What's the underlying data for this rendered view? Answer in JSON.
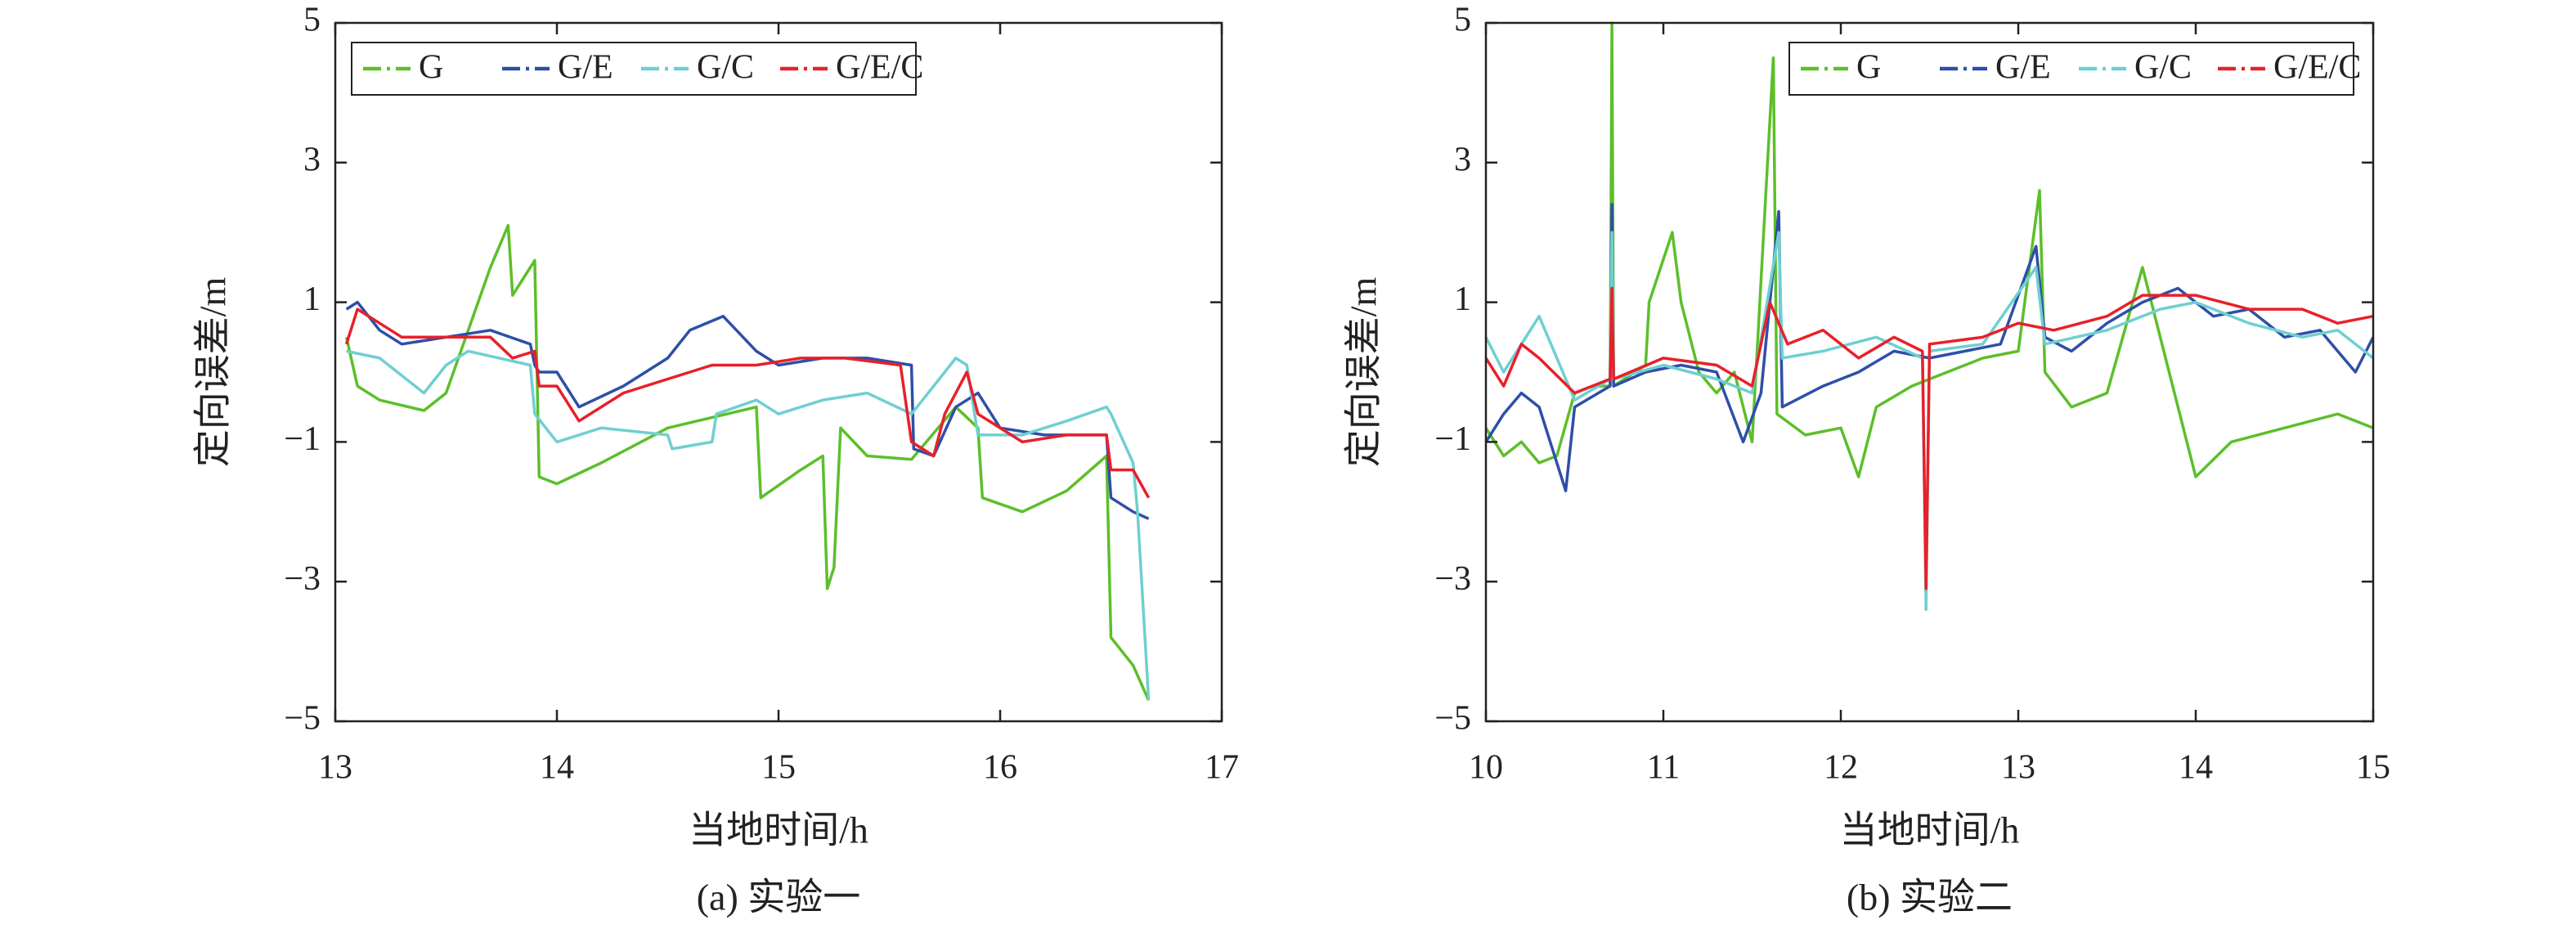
{
  "chart_data": [
    {
      "type": "line",
      "caption": "(a) 实验一",
      "xlabel": "当地时间/h",
      "ylabel": "定向误差/m",
      "xlim": [
        13,
        17
      ],
      "xticks": [
        13,
        14,
        15,
        16,
        17
      ],
      "ylim": [
        -5,
        5
      ],
      "yticks": [
        {
          "value": -5,
          "label": "−5"
        },
        {
          "value": -3,
          "label": "−3"
        },
        {
          "value": -1,
          "label": "−1"
        },
        1,
        3,
        5
      ],
      "legend": "upper left",
      "series": [
        {
          "name": "G",
          "color": "#5cbf2a",
          "x": [
            13.05,
            13.1,
            13.2,
            13.4,
            13.5,
            13.6,
            13.7,
            13.78,
            13.8,
            13.9,
            13.92,
            14.0,
            14.2,
            14.5,
            14.9,
            14.92,
            15.1,
            15.2,
            15.22,
            15.25,
            15.28,
            15.4,
            15.6,
            15.8,
            15.9,
            15.92,
            16.1,
            16.3,
            16.48,
            16.5,
            16.6,
            16.67
          ],
          "values": [
            0.5,
            -0.2,
            -0.4,
            -0.55,
            -0.3,
            0.6,
            1.5,
            2.1,
            1.1,
            1.6,
            -1.5,
            -1.6,
            -1.3,
            -0.8,
            -0.5,
            -1.8,
            -1.4,
            -1.2,
            -3.1,
            -2.8,
            -0.8,
            -1.2,
            -1.25,
            -0.5,
            -0.8,
            -1.8,
            -2.0,
            -1.7,
            -1.2,
            -3.8,
            -4.2,
            -4.7
          ]
        },
        {
          "name": "G/E",
          "color": "#2e4fa8",
          "x": [
            13.05,
            13.1,
            13.2,
            13.3,
            13.5,
            13.7,
            13.88,
            13.9,
            13.92,
            14.0,
            14.1,
            14.3,
            14.5,
            14.6,
            14.75,
            14.9,
            15.0,
            15.2,
            15.4,
            15.6,
            15.61,
            15.7,
            15.8,
            15.9,
            16.0,
            16.2,
            16.48,
            16.5,
            16.6,
            16.67
          ],
          "values": [
            0.9,
            1.0,
            0.6,
            0.4,
            0.5,
            0.6,
            0.4,
            0.1,
            0.0,
            0.0,
            -0.5,
            -0.2,
            0.2,
            0.6,
            0.8,
            0.3,
            0.1,
            0.2,
            0.2,
            0.1,
            -1.1,
            -1.2,
            -0.5,
            -0.3,
            -0.8,
            -0.9,
            -0.9,
            -1.8,
            -2.0,
            -2.1
          ]
        },
        {
          "name": "G/C",
          "color": "#6fcfd0",
          "x": [
            13.05,
            13.2,
            13.4,
            13.5,
            13.6,
            13.88,
            13.9,
            14.0,
            14.2,
            14.5,
            14.52,
            14.7,
            14.72,
            14.9,
            15.0,
            15.2,
            15.4,
            15.6,
            15.8,
            15.85,
            15.9,
            16.1,
            16.3,
            16.48,
            16.5,
            16.6,
            16.62,
            16.67
          ],
          "values": [
            0.3,
            0.2,
            -0.3,
            0.1,
            0.3,
            0.1,
            -0.6,
            -1.0,
            -0.8,
            -0.9,
            -1.1,
            -1.0,
            -0.6,
            -0.4,
            -0.6,
            -0.4,
            -0.3,
            -0.6,
            0.2,
            0.1,
            -0.9,
            -0.9,
            -0.7,
            -0.5,
            -0.6,
            -1.3,
            -2.0,
            -4.7
          ]
        },
        {
          "name": "G/E/C",
          "color": "#e8202a",
          "x": [
            13.05,
            13.1,
            13.2,
            13.3,
            13.5,
            13.7,
            13.8,
            13.9,
            13.92,
            14.0,
            14.1,
            14.3,
            14.5,
            14.7,
            14.9,
            15.1,
            15.3,
            15.55,
            15.6,
            15.7,
            15.75,
            15.8,
            15.85,
            15.9,
            16.1,
            16.3,
            16.48,
            16.5,
            16.6,
            16.67
          ],
          "values": [
            0.4,
            0.9,
            0.7,
            0.5,
            0.5,
            0.5,
            0.2,
            0.3,
            -0.2,
            -0.2,
            -0.7,
            -0.3,
            -0.1,
            0.1,
            0.1,
            0.2,
            0.2,
            0.1,
            -1.0,
            -1.2,
            -0.6,
            -0.3,
            0.0,
            -0.6,
            -1.0,
            -0.9,
            -0.9,
            -1.4,
            -1.4,
            -1.8
          ]
        }
      ]
    },
    {
      "type": "line",
      "caption": "(b) 实验二",
      "xlabel": "当地时间/h",
      "ylabel": "定向误差/m",
      "xlim": [
        10,
        15
      ],
      "xticks": [
        10,
        11,
        12,
        13,
        14,
        15
      ],
      "ylim": [
        -5,
        5
      ],
      "yticks": [
        {
          "value": -5,
          "label": "−5"
        },
        {
          "value": -3,
          "label": "−3"
        },
        {
          "value": -1,
          "label": "−1"
        },
        1,
        3,
        5
      ],
      "legend": "upper right",
      "series": [
        {
          "name": "G",
          "color": "#5cbf2a",
          "x": [
            10,
            10.1,
            10.2,
            10.3,
            10.4,
            10.5,
            10.6,
            10.7,
            10.71,
            10.72,
            10.9,
            10.92,
            11.05,
            11.1,
            11.2,
            11.3,
            11.4,
            11.5,
            11.62,
            11.64,
            11.8,
            12.0,
            12.1,
            12.2,
            12.4,
            12.6,
            12.8,
            13.0,
            13.12,
            13.15,
            13.3,
            13.5,
            13.7,
            13.9,
            14.0,
            14.2,
            14.5,
            14.8,
            15.0
          ],
          "values": [
            -0.8,
            -1.2,
            -1.0,
            -1.3,
            -1.2,
            -0.3,
            -0.2,
            -0.2,
            5.0,
            -0.2,
            0.1,
            1.0,
            2.0,
            1.0,
            0.0,
            -0.3,
            0.0,
            -1.0,
            4.5,
            -0.6,
            -0.9,
            -0.8,
            -1.5,
            -0.5,
            -0.2,
            0.0,
            0.2,
            0.3,
            2.6,
            0.0,
            -0.5,
            -0.3,
            1.5,
            -0.5,
            -1.5,
            -1.0,
            -0.8,
            -0.6,
            -0.8
          ]
        },
        {
          "name": "G/E",
          "color": "#2e4fa8",
          "x": [
            10,
            10.1,
            10.2,
            10.3,
            10.45,
            10.5,
            10.7,
            10.71,
            10.72,
            10.9,
            11.1,
            11.3,
            11.45,
            11.55,
            11.65,
            11.67,
            11.9,
            12.1,
            12.3,
            12.5,
            12.7,
            12.9,
            13.1,
            13.15,
            13.3,
            13.5,
            13.7,
            13.9,
            14.1,
            14.3,
            14.5,
            14.7,
            14.9,
            15.0
          ],
          "values": [
            -1.0,
            -0.6,
            -0.3,
            -0.5,
            -1.7,
            -0.5,
            -0.2,
            2.4,
            -0.2,
            0.0,
            0.1,
            0.0,
            -1.0,
            -0.3,
            2.3,
            -0.5,
            -0.2,
            0.0,
            0.3,
            0.2,
            0.3,
            0.4,
            1.8,
            0.5,
            0.3,
            0.7,
            1.0,
            1.2,
            0.8,
            0.9,
            0.5,
            0.6,
            0.0,
            0.5
          ]
        },
        {
          "name": "G/C",
          "color": "#6fcfd0",
          "x": [
            10,
            10.1,
            10.3,
            10.5,
            10.7,
            10.71,
            10.72,
            11.0,
            11.3,
            11.5,
            11.65,
            11.67,
            11.9,
            12.2,
            12.46,
            12.48,
            12.5,
            12.8,
            13.1,
            13.15,
            13.5,
            13.8,
            14.0,
            14.3,
            14.6,
            14.8,
            15.0
          ],
          "values": [
            0.5,
            0.0,
            0.8,
            -0.4,
            -0.1,
            2.0,
            -0.1,
            0.1,
            -0.1,
            -0.3,
            2.0,
            0.2,
            0.3,
            0.5,
            0.2,
            -3.4,
            0.3,
            0.4,
            1.5,
            0.4,
            0.6,
            0.9,
            1.0,
            0.7,
            0.5,
            0.6,
            0.2
          ]
        },
        {
          "name": "G/E/C",
          "color": "#e8202a",
          "x": [
            10,
            10.1,
            10.2,
            10.3,
            10.5,
            10.7,
            10.71,
            10.72,
            11.0,
            11.3,
            11.5,
            11.6,
            11.7,
            11.9,
            12.1,
            12.3,
            12.46,
            12.48,
            12.5,
            12.8,
            13.0,
            13.2,
            13.5,
            13.7,
            14.0,
            14.3,
            14.6,
            14.8,
            15.0
          ],
          "values": [
            0.2,
            -0.2,
            0.4,
            0.2,
            -0.3,
            -0.1,
            1.2,
            -0.1,
            0.2,
            0.1,
            -0.2,
            1.0,
            0.4,
            0.6,
            0.2,
            0.5,
            0.3,
            -3.1,
            0.4,
            0.5,
            0.7,
            0.6,
            0.8,
            1.1,
            1.1,
            0.9,
            0.9,
            0.7,
            0.8
          ]
        }
      ]
    }
  ]
}
